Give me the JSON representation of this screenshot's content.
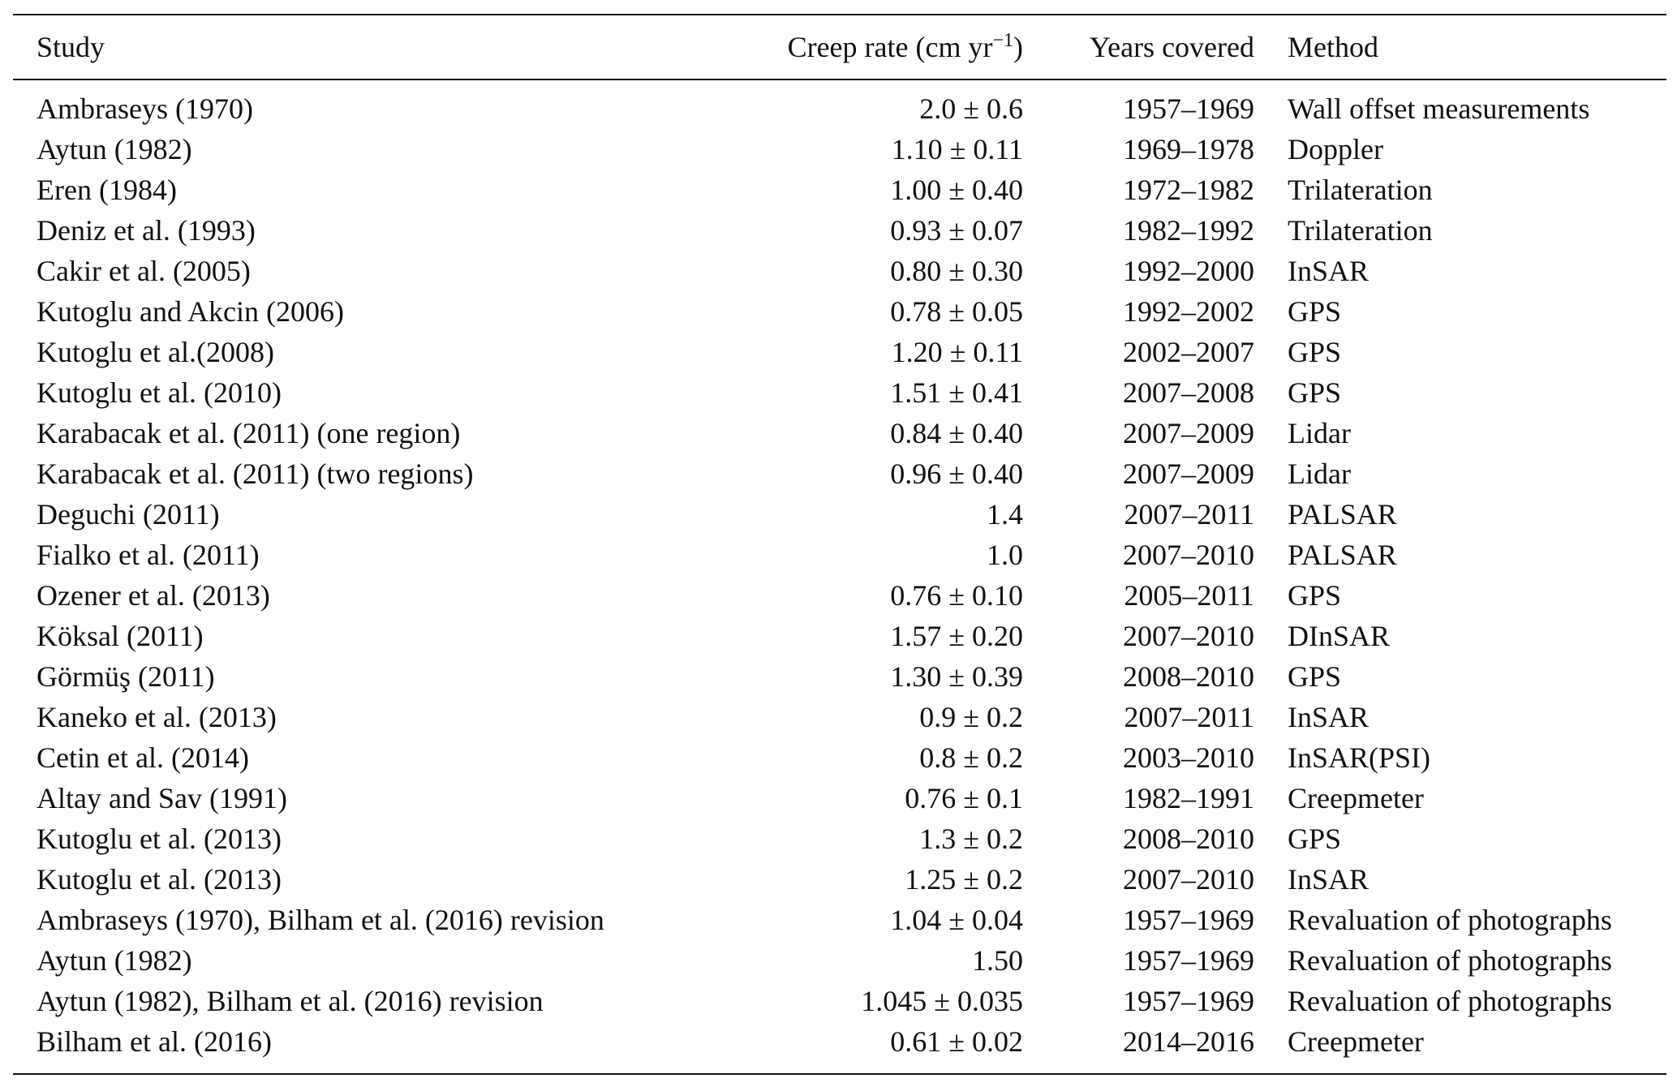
{
  "table": {
    "headers": {
      "study": "Study",
      "creep_rate": "Creep rate (cm yr",
      "creep_rate_sup": "−1",
      "creep_rate_close": ")",
      "years": "Years covered",
      "method": "Method"
    },
    "rows": [
      {
        "study": "Ambraseys (1970)",
        "rate": "2.0 ± 0.6",
        "years": "1957–1969",
        "method": "Wall offset measurements"
      },
      {
        "study": "Aytun (1982)",
        "rate": "1.10 ± 0.11",
        "years": "1969–1978",
        "method": "Doppler"
      },
      {
        "study": "Eren (1984)",
        "rate": "1.00 ± 0.40",
        "years": "1972–1982",
        "method": "Trilateration"
      },
      {
        "study": "Deniz et al. (1993)",
        "rate": "0.93 ± 0.07",
        "years": "1982–1992",
        "method": "Trilateration"
      },
      {
        "study": "Cakir et al. (2005)",
        "rate": "0.80 ± 0.30",
        "years": "1992–2000",
        "method": "InSAR"
      },
      {
        "study": "Kutoglu and Akcin (2006)",
        "rate": "0.78 ± 0.05",
        "years": "1992–2002",
        "method": "GPS"
      },
      {
        "study": "Kutoglu et al.(2008)",
        "rate": "1.20 ± 0.11",
        "years": "2002–2007",
        "method": "GPS"
      },
      {
        "study": "Kutoglu et al. (2010)",
        "rate": "1.51 ± 0.41",
        "years": "2007–2008",
        "method": "GPS"
      },
      {
        "study": "Karabacak et al. (2011) (one region)",
        "rate": "0.84 ± 0.40",
        "years": "2007–2009",
        "method": "Lidar"
      },
      {
        "study": "Karabacak et al. (2011) (two regions)",
        "rate": "0.96 ± 0.40",
        "years": "2007–2009",
        "method": "Lidar"
      },
      {
        "study": "Deguchi (2011)",
        "rate": "1.4",
        "years": "2007–2011",
        "method": "PALSAR"
      },
      {
        "study": "Fialko et al. (2011)",
        "rate": "1.0",
        "years": "2007–2010",
        "method": "PALSAR"
      },
      {
        "study": "Ozener et al. (2013)",
        "rate": "0.76 ± 0.10",
        "years": "2005–2011",
        "method": "GPS"
      },
      {
        "study": "Köksal (2011)",
        "rate": "1.57 ± 0.20",
        "years": "2007–2010",
        "method": "DInSAR"
      },
      {
        "study": "Görmüş (2011)",
        "rate": "1.30 ± 0.39",
        "years": "2008–2010",
        "method": "GPS"
      },
      {
        "study": "Kaneko et al. (2013)",
        "rate": "0.9 ± 0.2",
        "years": "2007–2011",
        "method": "InSAR"
      },
      {
        "study": "Cetin et al. (2014)",
        "rate": "0.8 ± 0.2",
        "years": "2003–2010",
        "method": "InSAR(PSI)"
      },
      {
        "study": "Altay and Sav (1991)",
        "rate": "0.76 ± 0.1",
        "years": "1982–1991",
        "method": "Creepmeter"
      },
      {
        "study": "Kutoglu et al. (2013)",
        "rate": "1.3 ± 0.2",
        "years": "2008–2010",
        "method": "GPS"
      },
      {
        "study": "Kutoglu et al. (2013)",
        "rate": "1.25 ± 0.2",
        "years": "2007–2010",
        "method": "InSAR"
      },
      {
        "study": "Ambraseys (1970), Bilham et al. (2016) revision",
        "rate": "1.04 ± 0.04",
        "years": "1957–1969",
        "method": "Revaluation of photographs"
      },
      {
        "study": "Aytun (1982)",
        "rate": "1.50",
        "years": "1957–1969",
        "method": "Revaluation of photographs"
      },
      {
        "study": "Aytun (1982), Bilham et al. (2016) revision",
        "rate": "1.045 ± 0.035",
        "years": "1957–1969",
        "method": "Revaluation of photographs"
      },
      {
        "study": "Bilham et al. (2016)",
        "rate": "0.61 ± 0.02",
        "years": "2014–2016",
        "method": "Creepmeter"
      }
    ]
  }
}
